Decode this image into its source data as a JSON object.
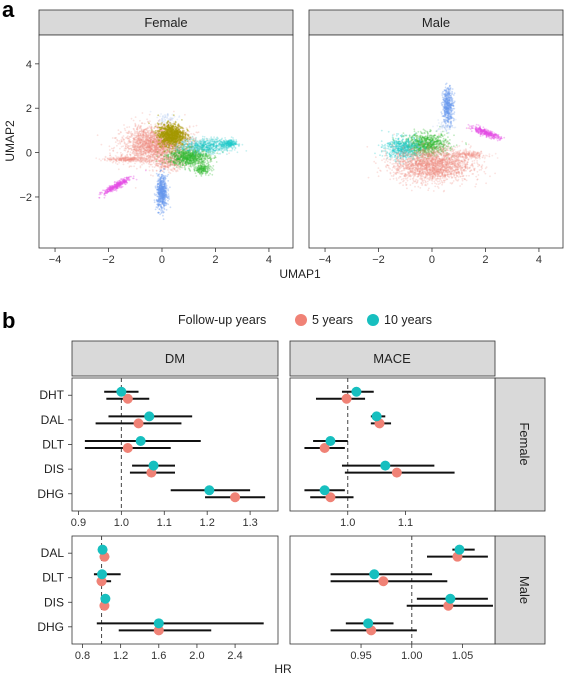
{
  "panel_labels": {
    "a": "a",
    "b": "b"
  },
  "chart_data": [
    {
      "type": "scatter",
      "facets": [
        "Female",
        "Male"
      ],
      "xlabel": "UMAP1",
      "ylabel": "UMAP2",
      "xlim": [
        -4.6,
        4.9
      ],
      "ylim": [
        -4.3,
        5.3
      ],
      "xticks": [
        -4,
        -2,
        0,
        2,
        4
      ],
      "yticks": [
        -2,
        0,
        2,
        4
      ],
      "clusters": {
        "Female": [
          {
            "color": "#a8c3ee",
            "cx": 0.2,
            "cy": 1.5,
            "rx": 0.35,
            "ry": 0.3,
            "n": 60,
            "alpha": 0.25
          },
          {
            "color": "#f08b80",
            "cx": -0.2,
            "cy": 0.35,
            "rx": 1.15,
            "ry": 0.75,
            "n": 2400,
            "alpha": 0.25
          },
          {
            "color": "#f08b80",
            "cx": -1.3,
            "cy": -0.3,
            "rx": 0.7,
            "ry": 0.1,
            "n": 300,
            "alpha": 0.2
          },
          {
            "color": "#f08b80",
            "cx": 0.3,
            "cy": -0.45,
            "rx": 0.55,
            "ry": 0.35,
            "n": 300,
            "alpha": 0.25
          },
          {
            "color": "#33bb33",
            "cx": 1.0,
            "cy": -0.2,
            "rx": 0.7,
            "ry": 0.35,
            "n": 900,
            "alpha": 0.3
          },
          {
            "color": "#33bb33",
            "cx": 1.5,
            "cy": -0.75,
            "rx": 0.3,
            "ry": 0.2,
            "n": 200,
            "alpha": 0.3
          },
          {
            "color": "#1ec9c9",
            "cx": 1.65,
            "cy": 0.3,
            "rx": 0.9,
            "ry": 0.3,
            "n": 700,
            "alpha": 0.25
          },
          {
            "color": "#1ec9c9",
            "cx": 2.5,
            "cy": 0.4,
            "rx": 0.25,
            "ry": 0.15,
            "n": 200,
            "alpha": 0.3
          },
          {
            "color": "#a59a00",
            "cx": 0.35,
            "cy": 0.8,
            "rx": 0.45,
            "ry": 0.45,
            "n": 900,
            "alpha": 0.45
          },
          {
            "color": "#6699ee",
            "cx": 0.0,
            "cy": -1.8,
            "rx": 0.18,
            "ry": 0.7,
            "n": 600,
            "alpha": 0.35
          },
          {
            "color": "#e64ce6",
            "cx": -1.7,
            "cy": -1.5,
            "rx": 0.55,
            "ry": 0.12,
            "n": 350,
            "alpha": 0.35,
            "rot": 35
          }
        ],
        "Male": [
          {
            "color": "#6699ee",
            "cx": 0.6,
            "cy": 2.1,
            "rx": 0.18,
            "ry": 0.75,
            "n": 450,
            "alpha": 0.35
          },
          {
            "color": "#e64ce6",
            "cx": 2.0,
            "cy": 0.9,
            "rx": 0.55,
            "ry": 0.12,
            "n": 350,
            "alpha": 0.35,
            "rot": -25
          },
          {
            "color": "#33bb33",
            "cx": -0.2,
            "cy": 0.35,
            "rx": 0.75,
            "ry": 0.45,
            "n": 900,
            "alpha": 0.3
          },
          {
            "color": "#1ec9c9",
            "cx": -1.1,
            "cy": 0.2,
            "rx": 0.6,
            "ry": 0.45,
            "n": 600,
            "alpha": 0.3
          },
          {
            "color": "#f08b80",
            "cx": 0.0,
            "cy": -0.55,
            "rx": 1.3,
            "ry": 0.7,
            "n": 2200,
            "alpha": 0.25
          },
          {
            "color": "#f08b80",
            "cx": 1.4,
            "cy": -0.1,
            "rx": 0.6,
            "ry": 0.15,
            "n": 250,
            "alpha": 0.2
          },
          {
            "color": "#a8c3ee",
            "cx": 0.5,
            "cy": 1.2,
            "rx": 0.3,
            "ry": 0.25,
            "n": 60,
            "alpha": 0.25
          }
        ]
      }
    },
    {
      "type": "forest",
      "legend": {
        "title": "Follow-up years",
        "items": [
          {
            "label": "5 years",
            "color": "#f08276"
          },
          {
            "label": "10 years",
            "color": "#17bfbf"
          }
        ],
        "placement": "top"
      },
      "xlabel": "HR",
      "reference": 1.0,
      "colors": {
        "y5": "#f08276",
        "y10": "#17bfbf"
      },
      "columns": [
        "DM",
        "MACE"
      ],
      "rows": [
        "Female",
        "Male"
      ],
      "panels": {
        "Female_DM": {
          "xlim": [
            0.885,
            1.365
          ],
          "xticks": [
            "0.9",
            "1.0",
            "1.1",
            "1.2",
            "1.3"
          ],
          "categories": [
            "DHT",
            "DAL",
            "DLT",
            "DIS",
            "DHG"
          ],
          "y10": [
            {
              "est": 1.0,
              "lo": 0.96,
              "hi": 1.04
            },
            {
              "est": 1.065,
              "lo": 0.97,
              "hi": 1.165
            },
            {
              "est": 1.045,
              "lo": 0.915,
              "hi": 1.185
            },
            {
              "est": 1.075,
              "lo": 1.025,
              "hi": 1.125
            },
            {
              "est": 1.205,
              "lo": 1.115,
              "hi": 1.3
            }
          ],
          "y5": [
            {
              "est": 1.015,
              "lo": 0.965,
              "hi": 1.065
            },
            {
              "est": 1.04,
              "lo": 0.94,
              "hi": 1.14
            },
            {
              "est": 1.015,
              "lo": 0.915,
              "hi": 1.115
            },
            {
              "est": 1.07,
              "lo": 1.02,
              "hi": 1.125
            },
            {
              "est": 1.265,
              "lo": 1.195,
              "hi": 1.335
            }
          ]
        },
        "Female_MACE": {
          "xlim": [
            0.9,
            1.255
          ],
          "xticks": [
            "1.0",
            "1.1"
          ],
          "categories": [
            "DHT",
            "DAL",
            "DLT",
            "DIS",
            "DHG"
          ],
          "y10": [
            {
              "est": 1.015,
              "lo": 0.99,
              "hi": 1.045
            },
            {
              "est": 1.05,
              "lo": 1.04,
              "hi": 1.065
            },
            {
              "est": 0.97,
              "lo": 0.94,
              "hi": 1.0
            },
            {
              "est": 1.065,
              "lo": 0.99,
              "hi": 1.15
            },
            {
              "est": 0.96,
              "lo": 0.925,
              "hi": 0.995
            }
          ],
          "y5": [
            {
              "est": 0.998,
              "lo": 0.945,
              "hi": 1.03
            },
            {
              "est": 1.055,
              "lo": 1.04,
              "hi": 1.075
            },
            {
              "est": 0.96,
              "lo": 0.925,
              "hi": 0.995
            },
            {
              "est": 1.085,
              "lo": 0.995,
              "hi": 1.185
            },
            {
              "est": 0.97,
              "lo": 0.935,
              "hi": 1.01
            }
          ]
        },
        "Male_DM": {
          "xlim": [
            0.69,
            2.85
          ],
          "xticks": [
            "0.8",
            "1.2",
            "1.6",
            "2.0",
            "2.4"
          ],
          "categories": [
            "DAL",
            "DLT",
            "DIS",
            "DHG"
          ],
          "y10": [
            {
              "est": 1.01,
              "lo": 0.97,
              "hi": 1.06
            },
            {
              "est": 1.005,
              "lo": 0.92,
              "hi": 1.2
            },
            {
              "est": 1.04,
              "lo": 1.0,
              "hi": 1.08
            },
            {
              "est": 1.6,
              "lo": 0.95,
              "hi": 2.7
            }
          ],
          "y5": [
            {
              "est": 1.03,
              "lo": 0.99,
              "hi": 1.08
            },
            {
              "est": 1.0,
              "lo": 0.95,
              "hi": 1.1
            },
            {
              "est": 1.03,
              "lo": 1.0,
              "hi": 1.07
            },
            {
              "est": 1.6,
              "lo": 1.18,
              "hi": 2.15
            }
          ]
        },
        "Male_MACE": {
          "xlim": [
            0.88,
            1.082
          ],
          "xticks": [
            "0.95",
            "1.00",
            "1.05"
          ],
          "categories": [
            "DAL",
            "DLT",
            "DIS",
            "DHG"
          ],
          "y10": [
            {
              "est": 1.047,
              "lo": 1.04,
              "hi": 1.062
            },
            {
              "est": 0.963,
              "lo": 0.92,
              "hi": 1.02
            },
            {
              "est": 1.038,
              "lo": 1.005,
              "hi": 1.075
            },
            {
              "est": 0.957,
              "lo": 0.935,
              "hi": 0.982
            }
          ],
          "y5": [
            {
              "est": 1.045,
              "lo": 1.015,
              "hi": 1.075
            },
            {
              "est": 0.972,
              "lo": 0.92,
              "hi": 1.035
            },
            {
              "est": 1.036,
              "lo": 0.995,
              "hi": 1.08
            },
            {
              "est": 0.96,
              "lo": 0.92,
              "hi": 1.005
            }
          ]
        }
      }
    }
  ]
}
